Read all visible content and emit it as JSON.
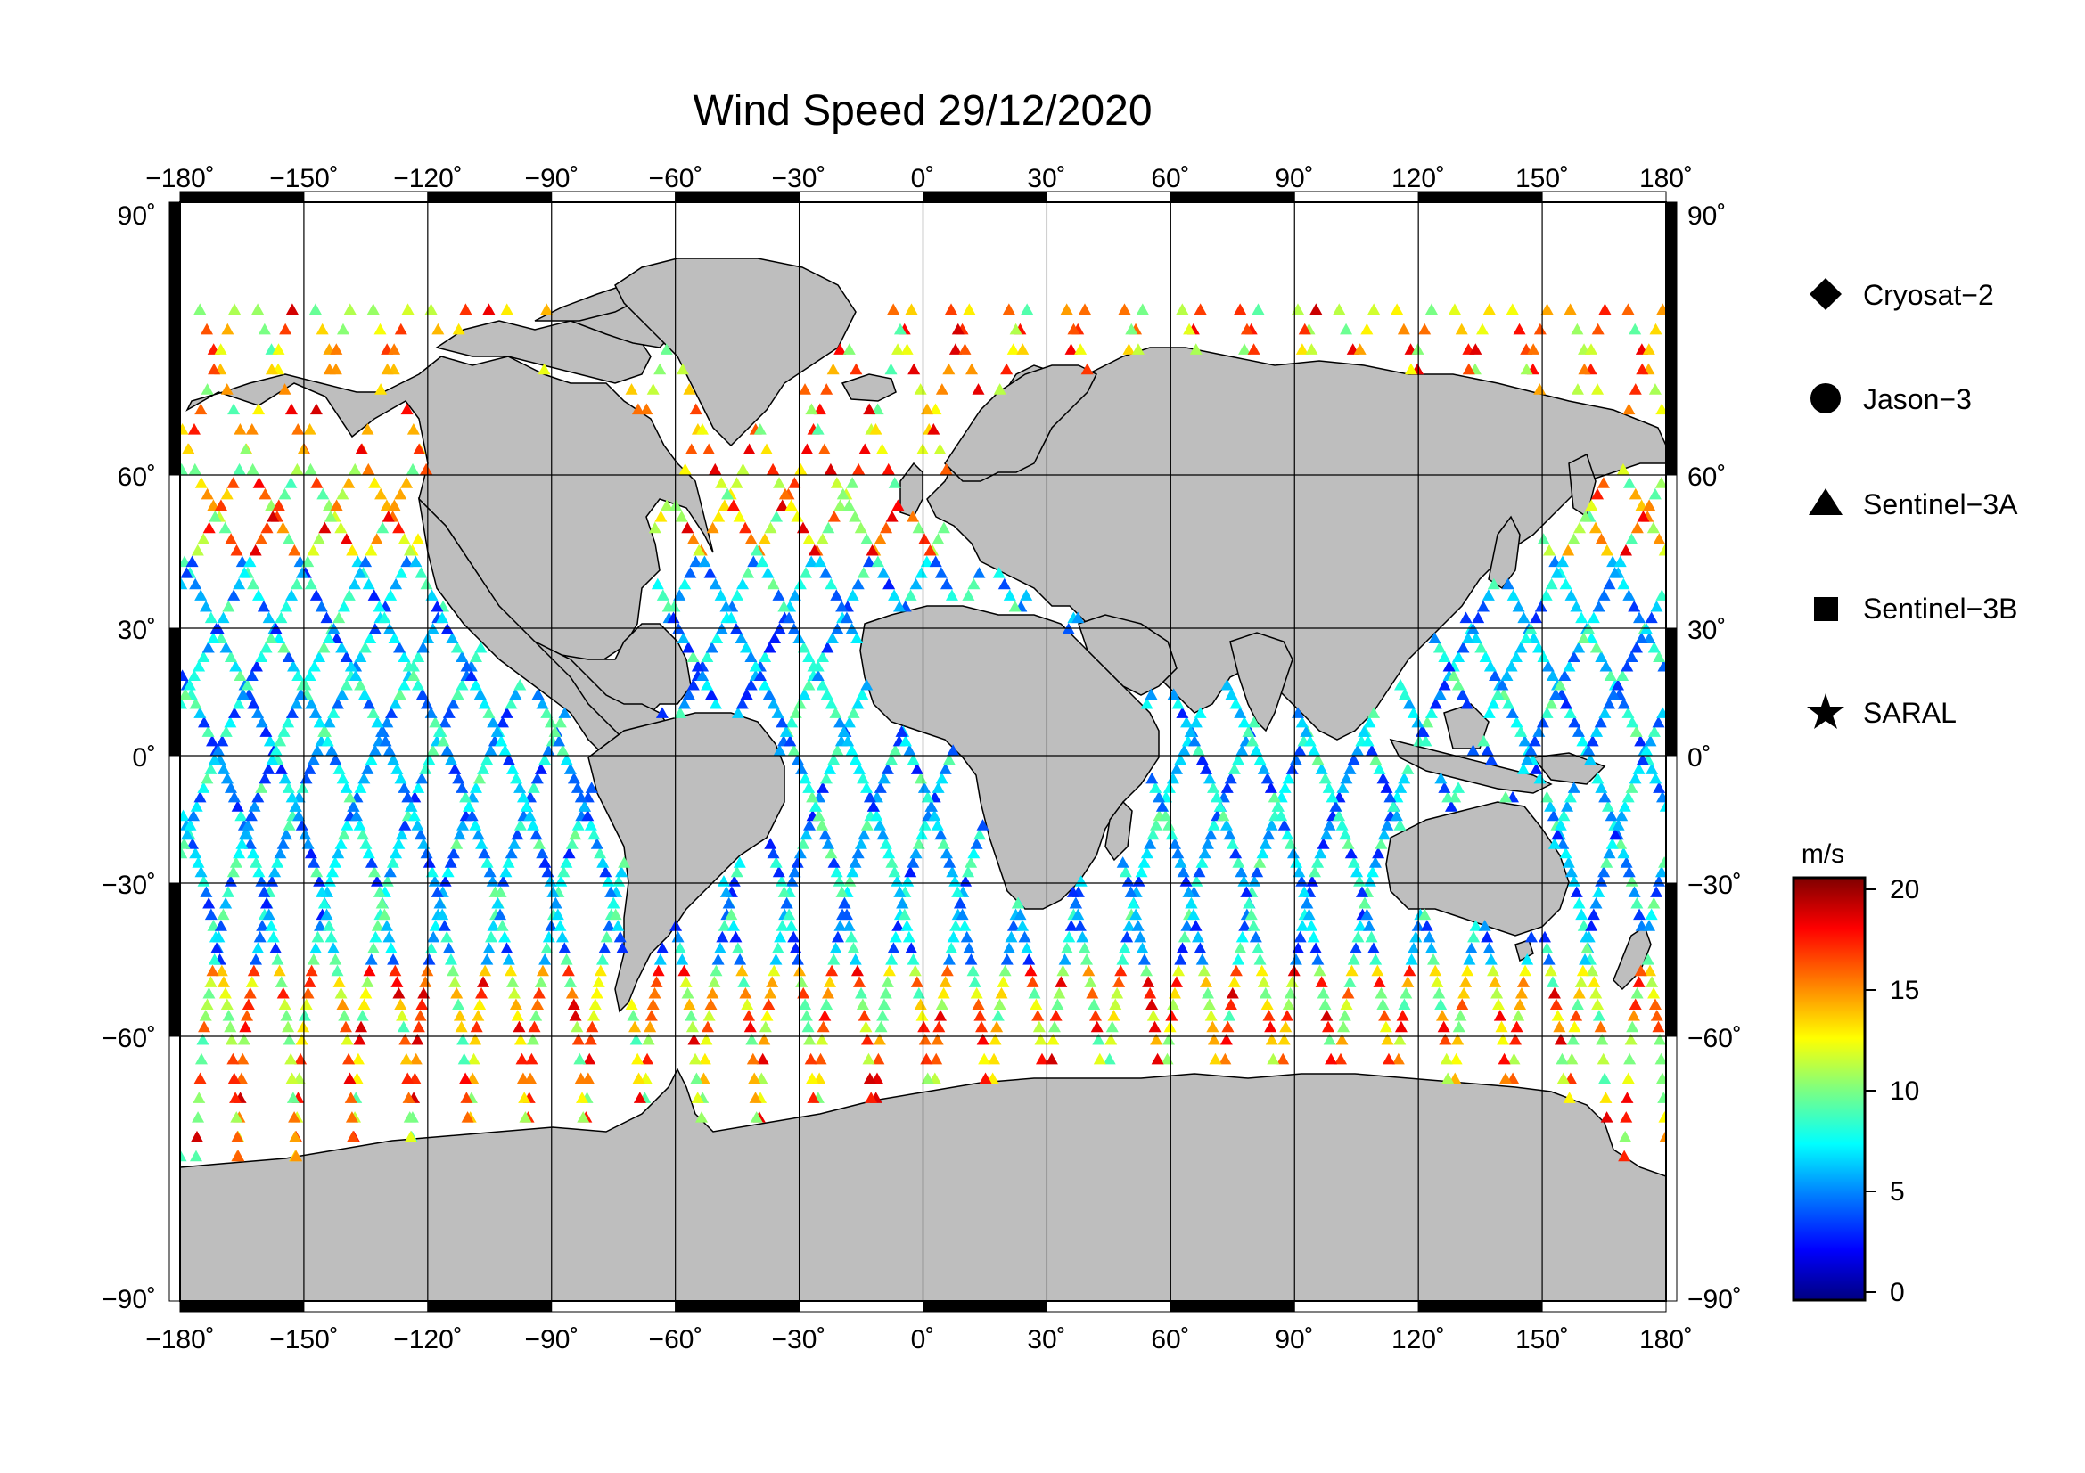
{
  "title": "Wind Speed 29/12/2020",
  "axes": {
    "lon_ticks": [
      "−180˚",
      "−150˚",
      "−120˚",
      "−90˚",
      "−60˚",
      "−30˚",
      "0˚",
      "30˚",
      "60˚",
      "90˚",
      "120˚",
      "150˚",
      "180˚"
    ],
    "lat_ticks_left": [
      "90˚",
      "60˚",
      "30˚",
      "0˚",
      "−30˚",
      "−60˚",
      "−90˚"
    ],
    "lat_ticks_right": [
      "90˚",
      "60˚",
      "30˚",
      "0˚",
      "−30˚",
      "−60˚",
      "−90˚"
    ]
  },
  "legend": {
    "items": [
      {
        "label": "Cryosat−2",
        "symbol": "diamond-icon"
      },
      {
        "label": "Jason−3",
        "symbol": "circle-icon"
      },
      {
        "label": "Sentinel−3A",
        "symbol": "triangle-icon"
      },
      {
        "label": "Sentinel−3B",
        "symbol": "square-icon"
      },
      {
        "label": "SARAL",
        "symbol": "star-icon"
      }
    ]
  },
  "colorbar": {
    "unit": "m/s",
    "ticks": [
      "20",
      "15",
      "10",
      "5",
      "0"
    ],
    "range": [
      0,
      20.5
    ],
    "colors": [
      "#00007f",
      "#0000ff",
      "#007fff",
      "#00ffff",
      "#7fff7f",
      "#ffff00",
      "#ff7f00",
      "#ff0000",
      "#7f0000"
    ]
  },
  "colors": {
    "land": "#bebebe",
    "ocean": "#ffffff",
    "frame": "#000000"
  }
}
